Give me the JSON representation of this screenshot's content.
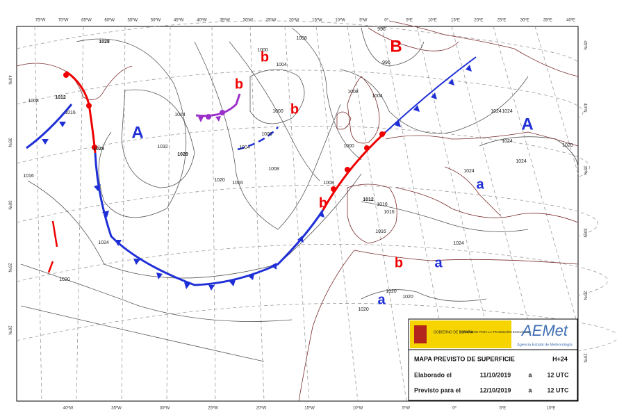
{
  "edges": {
    "top": [
      "75ºW",
      "70ºW",
      "65ºW",
      "60ºW",
      "55ºW",
      "50ºW",
      "45ºW",
      "40ºW",
      "35ºW",
      "30ºW",
      "25ºW",
      "20ºW",
      "15ºW",
      "10ºW",
      "5ºW",
      "0º",
      "5ºE",
      "10ºE",
      "15ºE",
      "20ºE",
      "25ºE",
      "30ºE",
      "35ºE",
      "40ºE"
    ],
    "bottom": [
      "40ºW",
      "35ºW",
      "30ºW",
      "25ºW",
      "20ºW",
      "15ºW",
      "10ºW",
      "5ºW",
      "0º",
      "5ºE",
      "10ºE"
    ],
    "left": [
      "40ºN",
      "35ºN",
      "30ºN",
      "25ºN",
      "20ºN"
    ],
    "right": [
      "45ºN",
      "40ºN",
      "35ºN",
      "30ºN",
      "25ºN",
      "20ºN"
    ]
  },
  "centers": [
    "A",
    "b",
    "b",
    "b",
    "B",
    "A",
    "a",
    "b",
    "b",
    "a",
    "a"
  ],
  "isobars": [
    "1028",
    "1012",
    "1016",
    "1008",
    "1024",
    "1032",
    "1028",
    "1028",
    "1020",
    "1016",
    "1008",
    "1004",
    "1008",
    "1000",
    "1000",
    "1000",
    "1004",
    "1008",
    "1000",
    "1008",
    "1004",
    "996",
    "996",
    "1012",
    "1016",
    "1016",
    "1016",
    "1016",
    "1024",
    "1020",
    "1020",
    "1020",
    "1020",
    "1024",
    "1024",
    "1024",
    "1024",
    "1024",
    "1020",
    "1024"
  ],
  "info": {
    "government": "GOBIERNO DE ESPAÑA",
    "ministry": "MINISTERIO PARA LA TRANSICIÓN ECOLÓGICA",
    "logo": "AEMet",
    "agency": "Agencia Estatal de Meteorología",
    "title": "MAPA PREVISTO DE SUPERFICIE",
    "lead": "H+24",
    "rows": [
      [
        "Elaborado el",
        "11/10/2019",
        "a",
        "12 UTC"
      ],
      [
        "Previsto para el",
        "12/10/2019",
        "a",
        "12 UTC"
      ]
    ]
  }
}
